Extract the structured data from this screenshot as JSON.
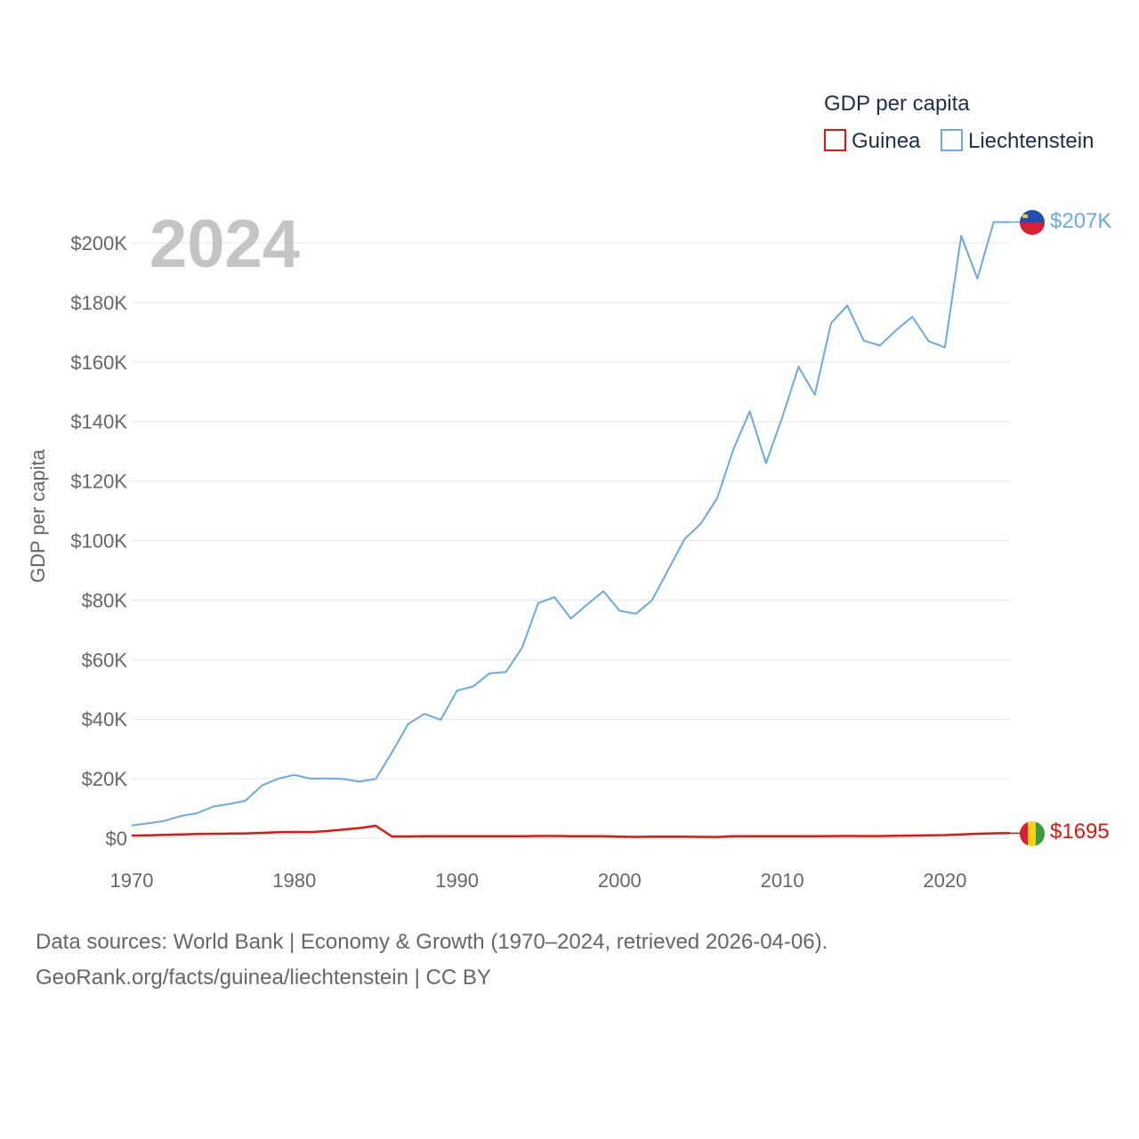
{
  "chart_data": {
    "type": "line",
    "title": "GDP per capita",
    "year_label": "2024",
    "ylabel": "GDP per capita",
    "xlabel": "",
    "xlim": [
      1970,
      2024
    ],
    "ylim": [
      0,
      207000
    ],
    "x_ticks": [
      1970,
      1980,
      1990,
      2000,
      2010,
      2020
    ],
    "y_ticks": [
      {
        "value": 0,
        "label": "$0"
      },
      {
        "value": 20000,
        "label": "$20K"
      },
      {
        "value": 40000,
        "label": "$40K"
      },
      {
        "value": 60000,
        "label": "$60K"
      },
      {
        "value": 80000,
        "label": "$80K"
      },
      {
        "value": 100000,
        "label": "$100K"
      },
      {
        "value": 120000,
        "label": "$120K"
      },
      {
        "value": 140000,
        "label": "$140K"
      },
      {
        "value": 160000,
        "label": "$160K"
      },
      {
        "value": 180000,
        "label": "$180K"
      },
      {
        "value": 200000,
        "label": "$200K"
      }
    ],
    "legend_position": "top-right",
    "x": [
      1970,
      1971,
      1972,
      1973,
      1974,
      1975,
      1976,
      1977,
      1978,
      1979,
      1980,
      1981,
      1982,
      1983,
      1984,
      1985,
      1986,
      1987,
      1988,
      1989,
      1990,
      1991,
      1992,
      1993,
      1994,
      1995,
      1996,
      1997,
      1998,
      1999,
      2000,
      2001,
      2002,
      2003,
      2004,
      2005,
      2006,
      2007,
      2008,
      2009,
      2010,
      2011,
      2012,
      2013,
      2014,
      2015,
      2016,
      2017,
      2018,
      2019,
      2020,
      2021,
      2022,
      2023,
      2024
    ],
    "series": [
      {
        "name": "Guinea",
        "color": "#e8140c",
        "end_label": "$1695",
        "flag": "guinea-flag-icon",
        "values": [
          900,
          1000,
          1100,
          1300,
          1400,
          1500,
          1550,
          1600,
          1800,
          2000,
          2100,
          2050,
          2400,
          2900,
          3400,
          4200,
          600,
          600,
          650,
          650,
          650,
          700,
          700,
          700,
          700,
          750,
          750,
          700,
          700,
          680,
          500,
          450,
          500,
          550,
          550,
          450,
          420,
          650,
          680,
          650,
          650,
          650,
          700,
          720,
          750,
          730,
          720,
          800,
          900,
          1000,
          1050,
          1300,
          1500,
          1650,
          1695
        ]
      },
      {
        "name": "Liechtenstein",
        "color": "#6aaae4",
        "end_label": "$207K",
        "flag": "liechtenstein-flag-icon",
        "values": [
          4300,
          5000,
          5800,
          7400,
          8400,
          10600,
          11500,
          12600,
          17700,
          20000,
          21300,
          20000,
          20100,
          19900,
          19000,
          19900,
          28800,
          38400,
          41800,
          39800,
          49600,
          51000,
          55400,
          55800,
          64000,
          79000,
          81000,
          73800,
          78500,
          83000,
          76400,
          75400,
          80000,
          90300,
          100500,
          105700,
          114300,
          130800,
          143400,
          126000,
          141400,
          158400,
          149000,
          173000,
          179000,
          167200,
          165500,
          170700,
          175200,
          167000,
          164900,
          202400,
          188000,
          207000,
          207000
        ]
      }
    ]
  },
  "footer": {
    "line1": "Data sources: World Bank | Economy & Growth (1970–2024, retrieved 2026-04-06).",
    "line2": "GeoRank.org/facts/guinea/liechtenstein | CC BY"
  }
}
